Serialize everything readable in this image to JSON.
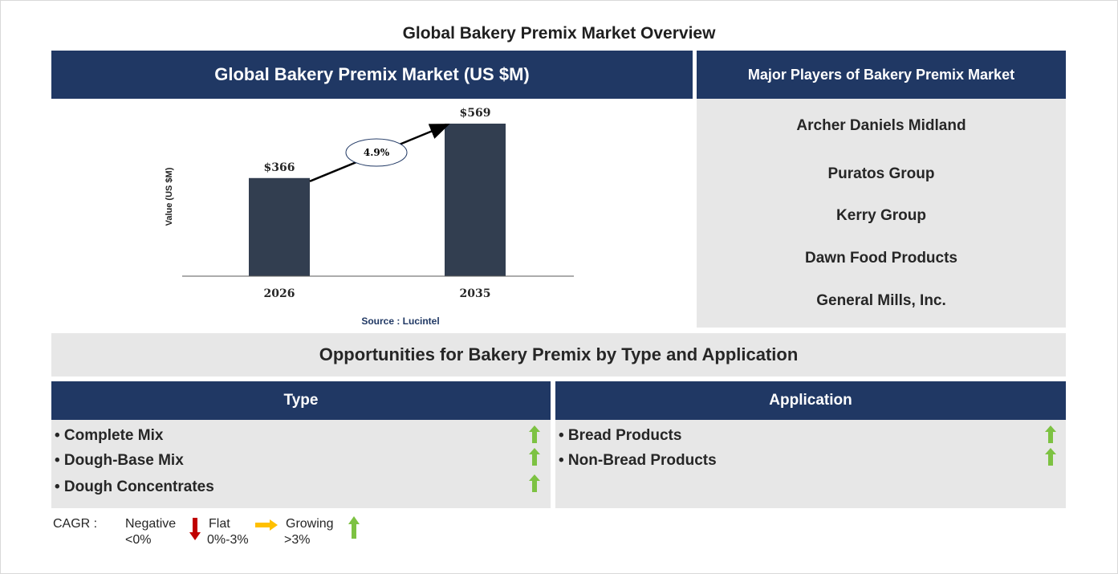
{
  "page": {
    "title": "Global Bakery Premix Market Overview"
  },
  "chart_panel": {
    "header": "Global Bakery Premix Market (US $M)",
    "source": "Source : Lucintel"
  },
  "chart_data": {
    "type": "bar",
    "title": "Global Bakery Premix Market (US $M)",
    "categories": [
      "2026",
      "2035"
    ],
    "values": [
      366,
      569
    ],
    "value_labels": [
      "$366",
      "$569"
    ],
    "ylabel": "Value (US $M)",
    "xlabel": "",
    "ylim": [
      0,
      600
    ],
    "grid": false,
    "bar_color": "#323e50",
    "cagr_label": "4.9%"
  },
  "players": {
    "header": "Major Players of Bakery Premix Market",
    "items": [
      "Archer Daniels Midland",
      "Puratos Group",
      "Kerry Group",
      "Dawn Food Products",
      "General Mills, Inc."
    ]
  },
  "opportunities": {
    "title": "Opportunities for Bakery Premix by Type and Application",
    "type": {
      "header": "Type",
      "items": [
        "• Complete Mix",
        "• Dough-Base Mix",
        "• Dough Concentrates"
      ],
      "trend": [
        "growing",
        "growing",
        "growing"
      ]
    },
    "application": {
      "header": "Application",
      "items": [
        "• Bread Products",
        "• Non-Bread Products"
      ],
      "trend": [
        "growing",
        "growing"
      ]
    }
  },
  "legend": {
    "label": "CAGR :",
    "negative_label": "Negative",
    "negative_range": "<0%",
    "flat_label": "Flat",
    "flat_range": "0%-3%",
    "growing_label": "Growing",
    "growing_range": ">3%"
  },
  "colors": {
    "navy": "#203864",
    "panel_gray": "#e7e7e7",
    "bar": "#323e50",
    "growing": "#7dc242",
    "negative": "#c00000",
    "flat": "#ffc000"
  }
}
